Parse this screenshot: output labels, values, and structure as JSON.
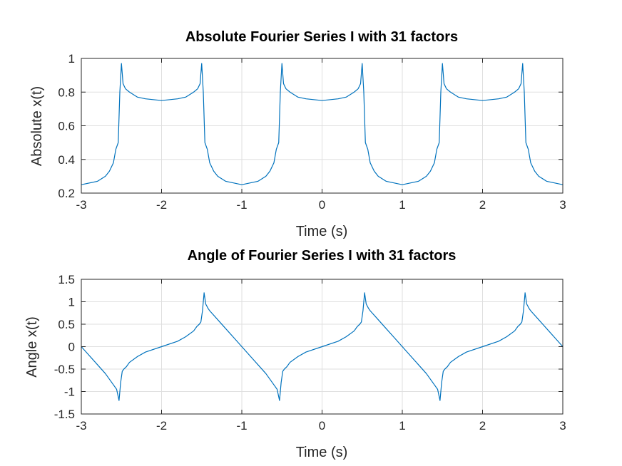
{
  "chart_data": [
    {
      "type": "line",
      "title": "Absolute Fourier Series I with 31 factors",
      "xlabel": "Time (s)",
      "ylabel": "Absolute x(t)",
      "xlim": [
        -3,
        3
      ],
      "ylim": [
        0.2,
        1
      ],
      "xticks": [
        -3,
        -2,
        -1,
        0,
        1,
        2,
        3
      ],
      "xtick_labels": [
        "-3",
        "-2",
        "-1",
        "0",
        "1",
        "2",
        "3"
      ],
      "yticks": [
        0.2,
        0.4,
        0.6,
        0.8,
        1
      ],
      "ytick_labels": [
        "0.2",
        "0.4",
        "0.6",
        "0.8",
        "1"
      ],
      "grid": true,
      "series": [
        {
          "color": "#0072BD",
          "x": [
            -3.0,
            -2.8,
            -2.7,
            -2.65,
            -2.6,
            -2.57,
            -2.54,
            -2.52,
            -2.5,
            -2.48,
            -2.45,
            -2.4,
            -2.3,
            -2.2,
            -2.0,
            -1.8,
            -1.7,
            -1.6,
            -1.55,
            -1.52,
            -1.5,
            -1.48,
            -1.46,
            -1.43,
            -1.4,
            -1.35,
            -1.3,
            -1.2,
            -1.0,
            -0.8,
            -0.7,
            -0.65,
            -0.6,
            -0.57,
            -0.54,
            -0.52,
            -0.5,
            -0.48,
            -0.45,
            -0.4,
            -0.3,
            -0.2,
            0.0,
            0.2,
            0.3,
            0.4,
            0.45,
            0.48,
            0.5,
            0.52,
            0.54,
            0.57,
            0.6,
            0.65,
            0.7,
            0.8,
            1.0,
            1.2,
            1.3,
            1.35,
            1.4,
            1.43,
            1.46,
            1.48,
            1.5,
            1.52,
            1.55,
            1.6,
            1.7,
            1.8,
            2.0,
            2.2,
            2.3,
            2.4,
            2.45,
            2.48,
            2.5,
            2.52,
            2.54,
            2.57,
            2.6,
            2.65,
            2.7,
            2.8,
            3.0
          ],
          "y": [
            0.25,
            0.27,
            0.3,
            0.33,
            0.38,
            0.46,
            0.5,
            0.8,
            0.97,
            0.85,
            0.82,
            0.8,
            0.77,
            0.76,
            0.75,
            0.76,
            0.77,
            0.8,
            0.82,
            0.85,
            0.97,
            0.8,
            0.5,
            0.46,
            0.38,
            0.33,
            0.3,
            0.27,
            0.25,
            0.27,
            0.3,
            0.33,
            0.38,
            0.46,
            0.5,
            0.8,
            0.97,
            0.85,
            0.82,
            0.8,
            0.77,
            0.76,
            0.75,
            0.76,
            0.77,
            0.8,
            0.82,
            0.85,
            0.97,
            0.8,
            0.5,
            0.46,
            0.38,
            0.33,
            0.3,
            0.27,
            0.25,
            0.27,
            0.3,
            0.33,
            0.38,
            0.46,
            0.5,
            0.8,
            0.97,
            0.85,
            0.82,
            0.8,
            0.77,
            0.76,
            0.75,
            0.76,
            0.77,
            0.8,
            0.82,
            0.85,
            0.97,
            0.8,
            0.5,
            0.46,
            0.38,
            0.33,
            0.3,
            0.27,
            0.25
          ]
        }
      ]
    },
    {
      "type": "line",
      "title": "Angle of Fourier Series I with 31 factors",
      "xlabel": "Time (s)",
      "ylabel": "Angle x(t)",
      "xlim": [
        -3,
        3
      ],
      "ylim": [
        -1.5,
        1.5
      ],
      "xticks": [
        -3,
        -2,
        -1,
        0,
        1,
        2,
        3
      ],
      "xtick_labels": [
        "-3",
        "-2",
        "-1",
        "0",
        "1",
        "2",
        "3"
      ],
      "yticks": [
        -1.5,
        -1,
        -0.5,
        0,
        0.5,
        1,
        1.5
      ],
      "ytick_labels": [
        "-1.5",
        "-1",
        "-0.5",
        "0",
        "0.5",
        "1",
        "1.5"
      ],
      "grid": true,
      "series": [
        {
          "color": "#0072BD",
          "x": [
            -3.0,
            -2.9,
            -2.8,
            -2.7,
            -2.6,
            -2.56,
            -2.53,
            -2.51,
            -2.49,
            -2.47,
            -2.44,
            -2.4,
            -2.3,
            -2.2,
            -2.0,
            -1.8,
            -1.7,
            -1.6,
            -1.56,
            -1.53,
            -1.51,
            -1.49,
            -1.47,
            -1.45,
            -1.42,
            -1.4,
            -1.3,
            -1.2,
            -1.1,
            -1.0,
            -0.9,
            -0.8,
            -0.7,
            -0.6,
            -0.56,
            -0.53,
            -0.51,
            -0.49,
            -0.47,
            -0.44,
            -0.4,
            -0.3,
            -0.2,
            0.0,
            0.2,
            0.3,
            0.4,
            0.44,
            0.47,
            0.49,
            0.51,
            0.53,
            0.55,
            0.58,
            0.6,
            0.7,
            0.8,
            0.9,
            1.0,
            1.1,
            1.2,
            1.3,
            1.4,
            1.44,
            1.47,
            1.49,
            1.51,
            1.53,
            1.56,
            1.6,
            1.7,
            1.8,
            2.0,
            2.2,
            2.3,
            2.4,
            2.44,
            2.47,
            2.49,
            2.51,
            2.53,
            2.55,
            2.58,
            2.6,
            2.7,
            2.8,
            2.9,
            3.0
          ],
          "y": [
            0.0,
            -0.2,
            -0.4,
            -0.6,
            -0.85,
            -0.95,
            -1.2,
            -0.8,
            -0.55,
            -0.5,
            -0.45,
            -0.35,
            -0.22,
            -0.12,
            0.0,
            0.12,
            0.22,
            0.35,
            0.45,
            0.5,
            0.55,
            0.8,
            1.2,
            0.95,
            0.85,
            0.8,
            0.6,
            0.4,
            0.2,
            0.0,
            -0.2,
            -0.4,
            -0.6,
            -0.85,
            -0.95,
            -1.2,
            -0.8,
            -0.55,
            -0.5,
            -0.45,
            -0.35,
            -0.22,
            -0.12,
            0.0,
            0.12,
            0.22,
            0.35,
            0.45,
            0.5,
            0.55,
            0.8,
            1.2,
            0.95,
            0.85,
            0.8,
            0.6,
            0.4,
            0.2,
            0.0,
            -0.2,
            -0.4,
            -0.6,
            -0.85,
            -0.95,
            -1.2,
            -0.8,
            -0.55,
            -0.5,
            -0.45,
            -0.35,
            -0.22,
            -0.12,
            0.0,
            0.12,
            0.22,
            0.35,
            0.45,
            0.5,
            0.55,
            0.8,
            1.2,
            0.95,
            0.85,
            0.8,
            0.6,
            0.4,
            0.2,
            0.0
          ]
        }
      ]
    }
  ]
}
